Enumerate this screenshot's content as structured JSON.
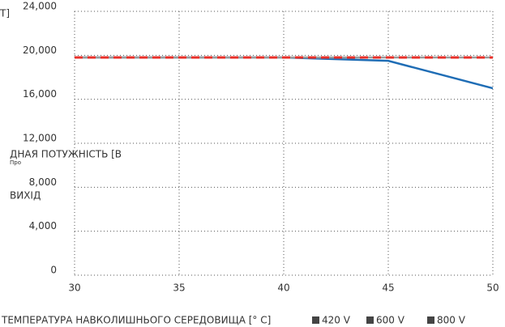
{
  "chart_data": {
    "type": "line",
    "y_label_parts": [
      "Т]",
      "ДНАЯ ПОТУЖНІСТЬ [В",
      "Про",
      "ВИХІД"
    ],
    "x_label": "ТЕМПЕРАТУРА НАВКОЛИШНЬОГО СЕРЕДОВИЩА [° C]",
    "x": [
      30,
      35,
      40,
      45,
      50
    ],
    "series": [
      {
        "name": "420 V",
        "color": "#1f6db5",
        "values": [
          19800,
          19800,
          19800,
          19500,
          17000
        ]
      },
      {
        "name": "600 V",
        "color": "#9a9a9a",
        "values": [
          19800,
          19800,
          19800,
          19800,
          19800
        ]
      },
      {
        "name": "800 V",
        "color": "#e8302a",
        "values": [
          19800,
          19800,
          19800,
          19800,
          19800
        ]
      }
    ],
    "xlim": [
      30,
      50
    ],
    "xticks": [
      30,
      35,
      40,
      45,
      50
    ],
    "ylim": [
      0,
      24000
    ],
    "yticks": [
      0,
      {
        "value": 4000,
        "label": "4,000"
      },
      {
        "value": 8000,
        "label": "8,000"
      },
      {
        "value": 12000,
        "label": "12,000"
      },
      {
        "value": 16000,
        "label": "16,000"
      },
      {
        "value": 20000,
        "label": "20,000"
      },
      {
        "value": 24000,
        "label": "24,000"
      }
    ],
    "grid": true,
    "legend": "bottom"
  }
}
